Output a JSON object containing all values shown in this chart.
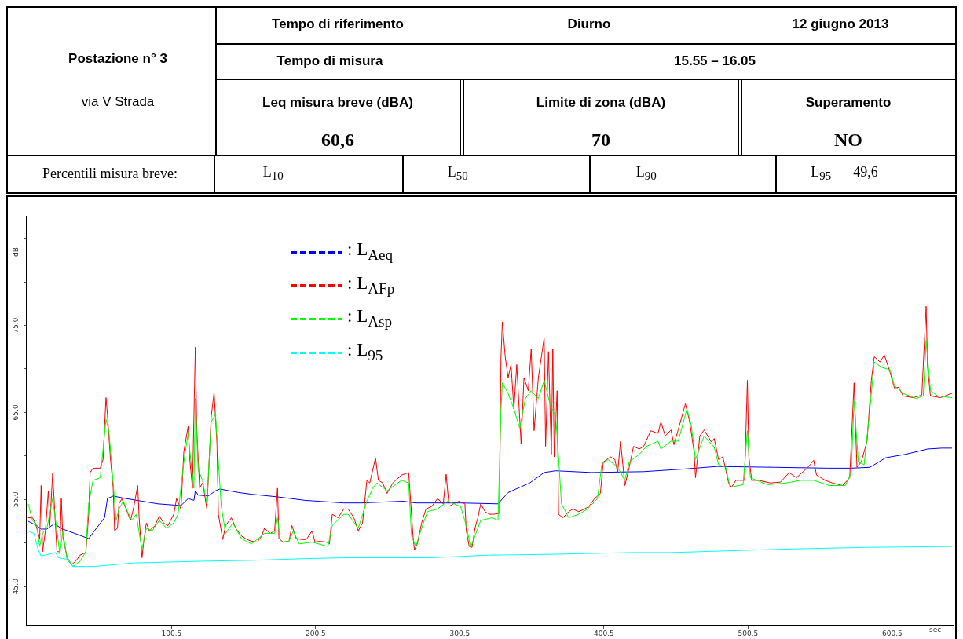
{
  "chart_data": [
    {
      "type": "other",
      "annotations": [
        "Postazione n° 3",
        "via V Strada",
        "Tempo di riferimento",
        "Diurno",
        "12 giugno 2013",
        "Tempo di misura",
        "15.55 – 16.05",
        "Leq misura breve (dBA)",
        "60,6",
        "Limite di zona (dBA)",
        "70",
        "Superamento",
        "NO",
        "Percentili misura breve:",
        "L$_{10}$ =",
        "L$_{50}$ =",
        "L$_{90}$ =",
        "L$_{95}$ =   49,6"
      ]
    },
    {
      "type": "line",
      "xlabel": "sec",
      "ylabel": "dB",
      "xlim": [
        0,
        642.5
      ],
      "ylim": [
        40.5,
        87.5
      ],
      "xticks": [
        100.5,
        200.5,
        300.5,
        400.5,
        500.5,
        600.5
      ],
      "yticks": [
        {
          "value": 45,
          "label": "45.0"
        },
        {
          "value": 50,
          "label": null
        },
        {
          "value": 55,
          "label": "55.0"
        },
        {
          "value": 60,
          "label": null
        },
        {
          "value": 65,
          "label": "65.0"
        },
        {
          "value": 70,
          "label": null
        },
        {
          "value": 75,
          "label": "75.0"
        },
        {
          "value": 80,
          "label": null
        },
        {
          "value": 85,
          "label": null
        }
      ],
      "legend": "top left",
      "marker": "none",
      "series": [
        {
          "name": ": L$_{Aeq}$",
          "color": "#0000ff",
          "x": [
            1,
            7,
            10,
            14,
            19,
            25,
            35,
            43,
            47,
            54,
            56,
            60,
            69,
            80,
            91,
            107,
            112,
            116,
            117,
            119,
            126,
            131,
            134,
            147,
            156,
            174,
            193,
            220,
            232,
            261,
            270,
            301,
            327,
            334,
            349,
            359,
            367,
            392,
            428,
            456,
            479,
            519,
            556,
            572,
            585,
            596,
            610,
            625,
            635,
            642
          ],
          "values": [
            52.5,
            52.0,
            51.6,
            51.6,
            52.2,
            51.6,
            51.0,
            50.5,
            51.4,
            52.9,
            55.1,
            55.4,
            55.1,
            54.8,
            54.5,
            54.3,
            55.1,
            54.9,
            56.0,
            55.5,
            55.4,
            56.0,
            56.2,
            55.8,
            55.6,
            55.3,
            54.9,
            54.6,
            54.6,
            54.8,
            54.6,
            54.6,
            54.5,
            55.8,
            56.9,
            58.1,
            58.3,
            58.1,
            58.2,
            58.5,
            58.8,
            58.7,
            58.6,
            58.6,
            58.7,
            59.8,
            60.2,
            60.8,
            60.9,
            60.9
          ]
        },
        {
          "name": ": L$_{AFp}$",
          "color": "#ff0000",
          "x": [
            1,
            4,
            6,
            9,
            10,
            11,
            13,
            15,
            16,
            18,
            20,
            21,
            23,
            24,
            25,
            28,
            31,
            34,
            37,
            41,
            43,
            44,
            46,
            51,
            53,
            55,
            56,
            58,
            60,
            61,
            63,
            64,
            66,
            69,
            72,
            74,
            77,
            78,
            80,
            81,
            83,
            85,
            89,
            92,
            95,
            98,
            102,
            104,
            107,
            109,
            112,
            113,
            115,
            117,
            118,
            120,
            122,
            123,
            125,
            128,
            130,
            132,
            133,
            136,
            138,
            142,
            145,
            149,
            153,
            156,
            160,
            163,
            165,
            169,
            172,
            174,
            175,
            178,
            182,
            184,
            187,
            191,
            194,
            198,
            200,
            203,
            208,
            210,
            212,
            216,
            220,
            223,
            227,
            230,
            233,
            236,
            238,
            242,
            244,
            247,
            250,
            254,
            260,
            265,
            266,
            268,
            269,
            271,
            274,
            277,
            281,
            285,
            289,
            291,
            293,
            296,
            300,
            304,
            305,
            307,
            309,
            311,
            313,
            315,
            318,
            321,
            324,
            328,
            329,
            330,
            332,
            334,
            336,
            338,
            340,
            343,
            345,
            348,
            350,
            352,
            355,
            359,
            360,
            362,
            364,
            365,
            366,
            368,
            369,
            372,
            376,
            379,
            383,
            387,
            390,
            394,
            398,
            400,
            405,
            408,
            410,
            412,
            415,
            418,
            421,
            425,
            428,
            433,
            438,
            440,
            443,
            447,
            449,
            452,
            457,
            460,
            463,
            464,
            467,
            470,
            475,
            477,
            480,
            483,
            487,
            489,
            492,
            498,
            500,
            501,
            503,
            508,
            516,
            523,
            529,
            534,
            542,
            546,
            548,
            554,
            559,
            566,
            571,
            574,
            576,
            579,
            583,
            586,
            588,
            592,
            595,
            599,
            602,
            605,
            608,
            615,
            621,
            624,
            625,
            627,
            634,
            637,
            642
          ],
          "values": [
            52.9,
            52.9,
            52.3,
            50.5,
            56.6,
            49.0,
            51.4,
            56.0,
            52.0,
            58.0,
            52.0,
            49.0,
            49.0,
            55.1,
            50.8,
            48.4,
            47.5,
            47.9,
            48.6,
            48.9,
            53.3,
            58.1,
            58.6,
            58.6,
            59.6,
            66.7,
            64.8,
            59.9,
            56.3,
            51.4,
            51.7,
            54.5,
            55.1,
            53.9,
            52.6,
            53.9,
            56.6,
            52.9,
            48.3,
            49.9,
            52.3,
            51.4,
            52.0,
            53.1,
            52.3,
            52.0,
            53.3,
            55.1,
            53.9,
            60.5,
            63.4,
            59.9,
            56.3,
            72.5,
            62.9,
            56.3,
            56.9,
            56.0,
            53.9,
            64.5,
            67.3,
            61.4,
            53.3,
            50.4,
            52.0,
            52.9,
            51.7,
            50.8,
            50.4,
            50.2,
            50.1,
            50.8,
            51.7,
            51.1,
            51.4,
            56.3,
            50.5,
            50.1,
            50.2,
            52.0,
            50.5,
            50.4,
            50.4,
            51.4,
            50.1,
            50.2,
            50.1,
            49.9,
            53.3,
            52.9,
            53.9,
            53.9,
            52.9,
            51.4,
            52.3,
            57.2,
            56.9,
            59.8,
            57.2,
            56.9,
            55.7,
            56.9,
            57.8,
            58.1,
            55.7,
            50.8,
            49.2,
            49.9,
            52.3,
            53.9,
            54.2,
            55.1,
            54.5,
            57.9,
            54.2,
            54.5,
            54.8,
            54.5,
            51.4,
            49.6,
            49.5,
            51.7,
            52.9,
            54.5,
            53.6,
            53.3,
            53.3,
            53.4,
            71.1,
            75.4,
            71.4,
            69.0,
            70.5,
            65.4,
            70.5,
            61.4,
            69.0,
            67.5,
            72.3,
            62.9,
            69.0,
            73.6,
            61.1,
            72.0,
            60.2,
            72.3,
            59.9,
            67.5,
            53.3,
            52.9,
            53.6,
            53.9,
            53.6,
            53.9,
            54.2,
            55.1,
            55.7,
            59.3,
            59.9,
            59.6,
            58.1,
            61.7,
            56.6,
            58.7,
            61.1,
            60.8,
            61.1,
            62.9,
            62.6,
            63.9,
            62.3,
            63.0,
            61.3,
            63.0,
            66.0,
            63.9,
            60.5,
            57.5,
            62.3,
            63.0,
            61.6,
            62.0,
            59.6,
            59.9,
            56.9,
            56.4,
            57.2,
            57.2,
            68.7,
            59.9,
            57.2,
            57.2,
            56.9,
            57.0,
            58.1,
            57.5,
            58.7,
            59.5,
            57.8,
            57.2,
            56.9,
            56.6,
            57.5,
            68.4,
            58.7,
            59.3,
            61.7,
            68.7,
            71.4,
            70.8,
            71.6,
            69.6,
            67.8,
            67.9,
            66.9,
            66.7,
            67.0,
            77.2,
            70.2,
            66.9,
            66.7,
            66.9,
            67.2
          ]
        },
        {
          "name": ": L$_{Asp}$",
          "color": "#00ff00",
          "x": [
            1,
            4,
            7,
            9,
            11,
            14,
            18,
            21,
            23,
            25,
            28,
            32,
            37,
            41,
            43,
            46,
            51,
            55,
            57,
            60,
            62,
            64,
            67,
            70,
            73,
            76,
            79,
            80,
            83,
            87,
            92,
            97,
            102,
            105,
            109,
            112,
            114,
            116,
            117,
            119,
            122,
            125,
            128,
            131,
            133,
            135,
            138,
            143,
            149,
            156,
            165,
            172,
            174,
            176,
            182,
            185,
            189,
            198,
            209,
            212,
            220,
            223,
            230,
            236,
            240,
            243,
            250,
            260,
            265,
            267,
            270,
            274,
            278,
            285,
            292,
            301,
            305,
            308,
            311,
            315,
            323,
            327,
            329,
            330,
            334,
            338,
            342,
            346,
            350,
            355,
            359,
            363,
            367,
            369,
            371,
            376,
            383,
            389,
            396,
            399,
            403,
            408,
            411,
            415,
            418,
            425,
            430,
            438,
            440,
            447,
            452,
            458,
            461,
            464,
            470,
            477,
            480,
            485,
            488,
            497,
            500,
            502,
            514,
            527,
            537,
            546,
            557,
            568,
            572,
            574,
            577,
            581,
            585,
            588,
            593,
            599,
            602,
            608,
            617,
            622,
            624,
            627,
            632,
            642
          ],
          "values": [
            54.5,
            52.6,
            52.0,
            49.6,
            51.1,
            51.7,
            55.1,
            51.4,
            48.7,
            51.4,
            48.1,
            47.3,
            47.9,
            49.0,
            54.5,
            57.2,
            57.5,
            64.2,
            62.9,
            56.9,
            52.6,
            53.9,
            54.8,
            53.6,
            52.6,
            53.3,
            50.2,
            49.3,
            51.7,
            51.4,
            52.6,
            51.7,
            52.3,
            53.3,
            59.3,
            62.6,
            59.3,
            56.3,
            66.6,
            58.4,
            57.2,
            54.5,
            63.9,
            64.8,
            59.3,
            54.2,
            51.1,
            52.3,
            50.5,
            49.9,
            51.1,
            51.1,
            52.9,
            50.1,
            50.2,
            51.4,
            49.9,
            50.1,
            49.6,
            52.0,
            53.3,
            53.3,
            51.7,
            54.8,
            56.3,
            56.9,
            56.0,
            57.2,
            56.9,
            50.8,
            49.6,
            51.7,
            53.6,
            53.9,
            54.8,
            54.2,
            52.0,
            49.5,
            50.8,
            52.6,
            52.9,
            52.6,
            65.1,
            68.4,
            67.2,
            65.4,
            63.2,
            66.6,
            67.5,
            66.6,
            68.7,
            66.0,
            64.5,
            59.9,
            54.5,
            52.9,
            53.3,
            53.9,
            55.1,
            59.0,
            59.6,
            59.0,
            58.4,
            57.2,
            59.3,
            60.2,
            61.1,
            61.7,
            60.8,
            61.7,
            61.7,
            65.4,
            63.6,
            59.6,
            62.3,
            61.0,
            59.0,
            58.7,
            56.4,
            56.7,
            62.9,
            57.5,
            56.7,
            56.9,
            57.2,
            57.2,
            56.6,
            56.6,
            58.1,
            66.3,
            59.3,
            59.0,
            65.4,
            70.8,
            70.2,
            69.9,
            68.1,
            67.2,
            66.6,
            66.9,
            73.3,
            67.5,
            66.9,
            66.7
          ]
        },
        {
          "name": ": L$_{95}$",
          "color": "#00ffff",
          "x": [
            1,
            5,
            8,
            10,
            20,
            22,
            29,
            32,
            47,
            74,
            120,
            156,
            193,
            220,
            280,
            320,
            365,
            421,
            447,
            527,
            583,
            642
          ],
          "values": [
            51.4,
            51.1,
            49.2,
            48.5,
            48.9,
            48.3,
            48.1,
            47.3,
            47.3,
            47.7,
            47.9,
            48.0,
            48.2,
            48.3,
            48.3,
            48.6,
            48.7,
            48.9,
            48.9,
            49.3,
            49.5,
            49.6
          ]
        }
      ]
    }
  ]
}
